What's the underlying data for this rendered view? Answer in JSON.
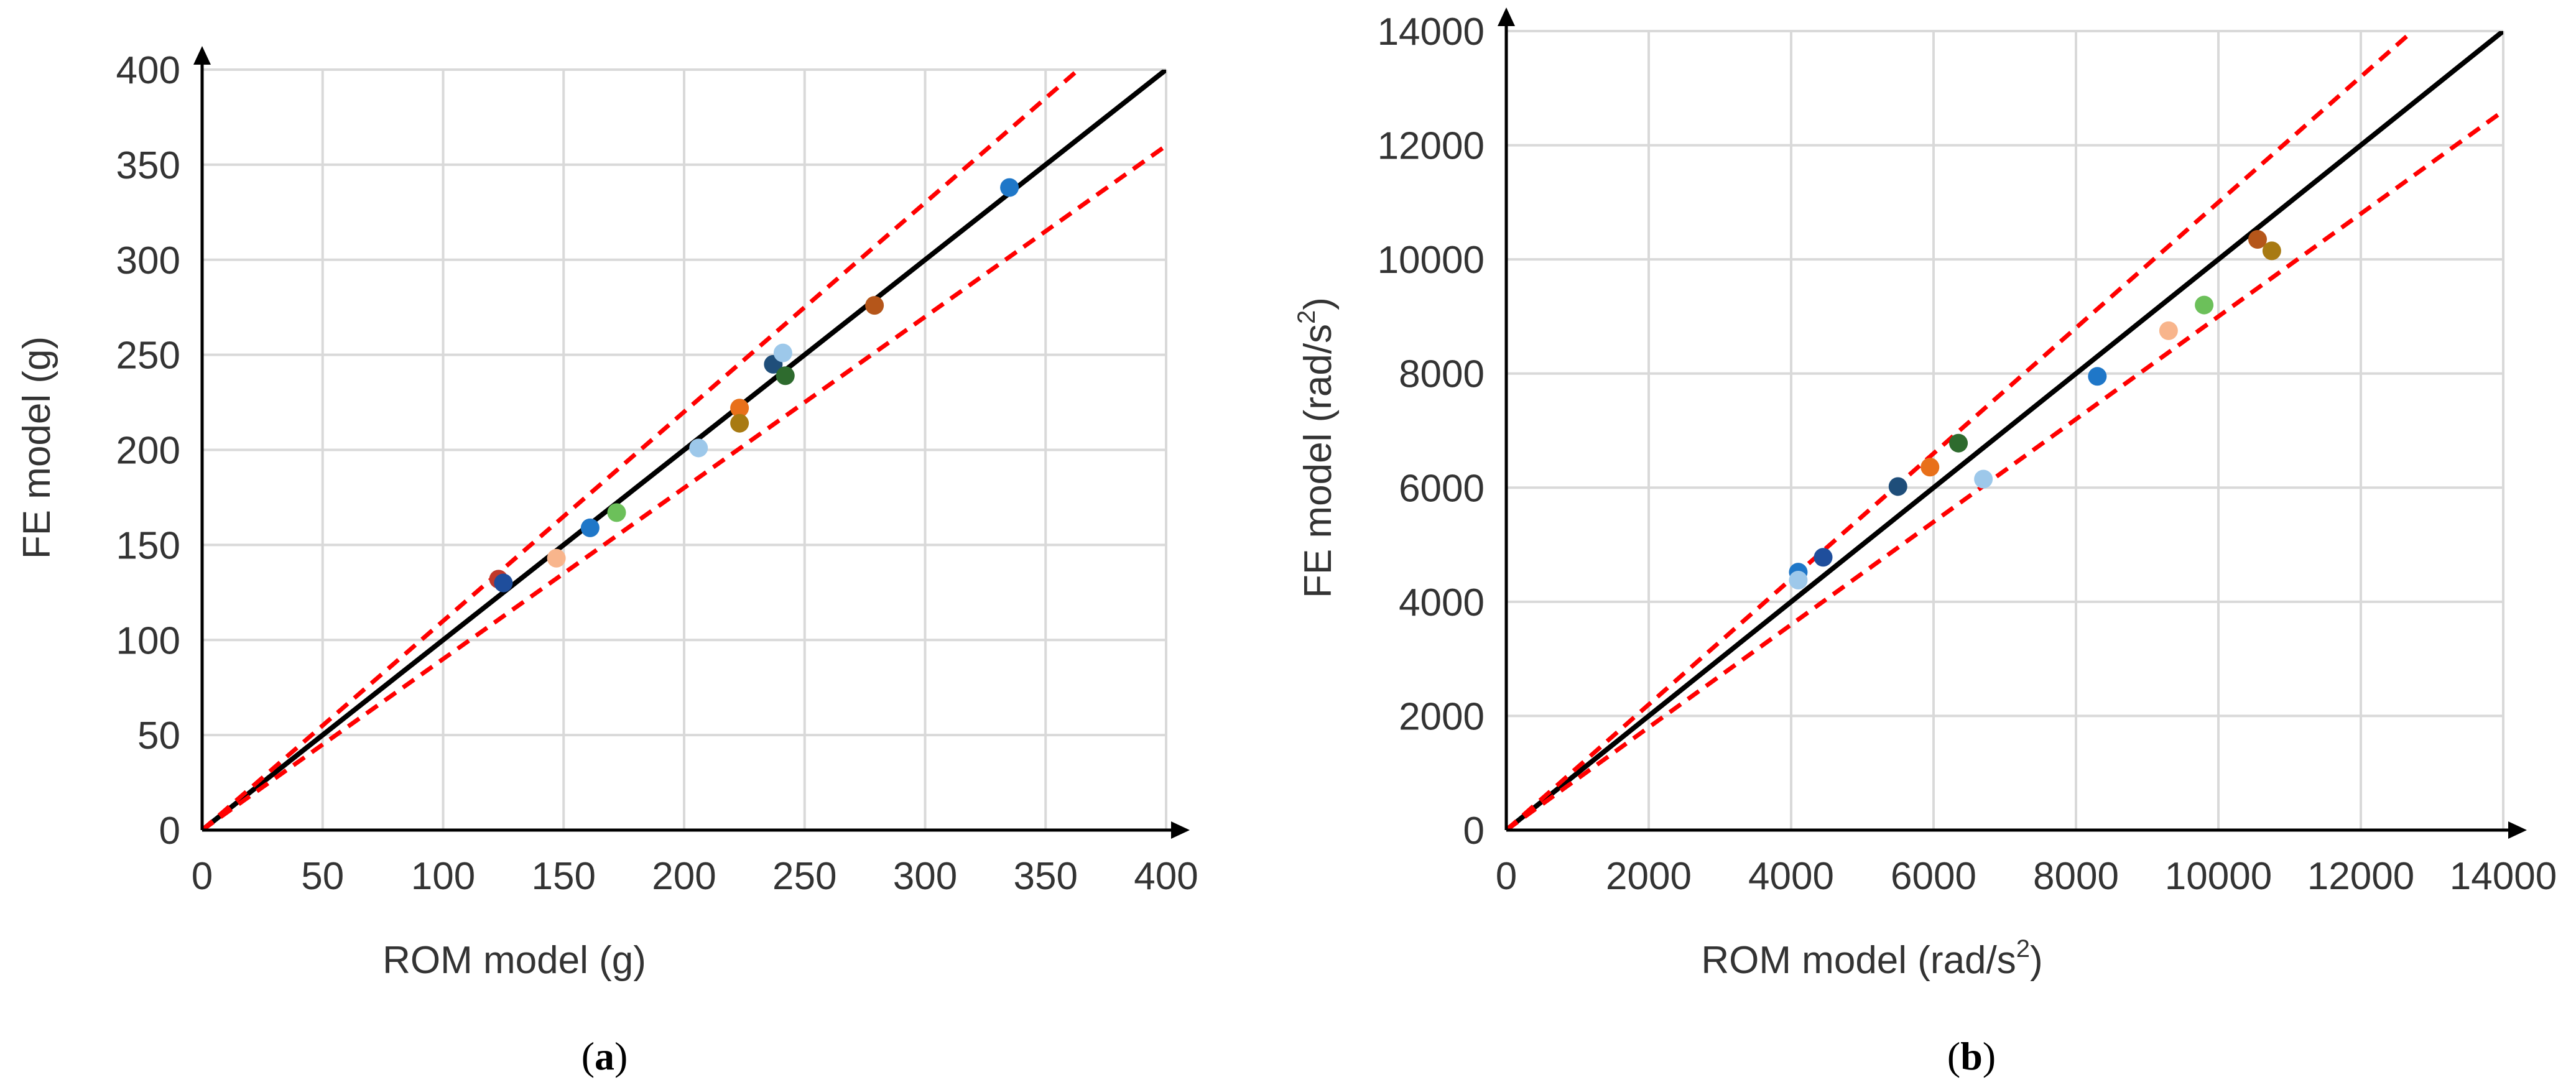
{
  "figure": {
    "panels": [
      "(a)",
      "(b)"
    ]
  },
  "chart_data": [
    {
      "type": "scatter",
      "panel_label": "(a)",
      "title": "",
      "xlabel": "ROM model (g)",
      "ylabel": "FE model (g)",
      "xlim": [
        0,
        400
      ],
      "ylim": [
        0,
        400
      ],
      "xticks": [
        0,
        50,
        100,
        150,
        200,
        250,
        300,
        350,
        400
      ],
      "yticks": [
        0,
        50,
        100,
        150,
        200,
        250,
        300,
        350,
        400
      ],
      "grid": true,
      "reference_lines": [
        {
          "name": "y = x",
          "slope": 1.0,
          "color": "#000000",
          "style": "solid"
        },
        {
          "name": "upper bound",
          "slope": 1.1,
          "color": "#ff0000",
          "style": "dashed"
        },
        {
          "name": "lower bound",
          "slope": 0.9,
          "color": "#ff0000",
          "style": "dashed"
        }
      ],
      "points": [
        {
          "x": 123,
          "y": 132,
          "color": "#c0392b"
        },
        {
          "x": 125,
          "y": 130,
          "color": "#1f4e9c"
        },
        {
          "x": 147,
          "y": 143,
          "color": "#f8b58c"
        },
        {
          "x": 161,
          "y": 159,
          "color": "#1f77c8"
        },
        {
          "x": 172,
          "y": 167,
          "color": "#6cc05a"
        },
        {
          "x": 206,
          "y": 201,
          "color": "#9dc8ea"
        },
        {
          "x": 223,
          "y": 222,
          "color": "#e8701a"
        },
        {
          "x": 223,
          "y": 214,
          "color": "#a87a12"
        },
        {
          "x": 237,
          "y": 245,
          "color": "#1f4e7a"
        },
        {
          "x": 241,
          "y": 251,
          "color": "#9dc8ea"
        },
        {
          "x": 242,
          "y": 239,
          "color": "#2e6b2e"
        },
        {
          "x": 279,
          "y": 276,
          "color": "#b5561a"
        },
        {
          "x": 335,
          "y": 338,
          "color": "#1f77c8"
        }
      ]
    },
    {
      "type": "scatter",
      "panel_label": "(b)",
      "title": "",
      "xlabel": "ROM model (rad/s",
      "xlabel_sup": "2",
      "xlabel_end": ")",
      "ylabel": "FE model (rad/s",
      "ylabel_sup": "2",
      "ylabel_end": ")",
      "xlim": [
        0,
        14000
      ],
      "ylim": [
        0,
        14000
      ],
      "xticks": [
        0,
        2000,
        4000,
        6000,
        8000,
        10000,
        12000,
        14000
      ],
      "yticks": [
        0,
        2000,
        4000,
        6000,
        8000,
        10000,
        12000,
        14000
      ],
      "grid": true,
      "reference_lines": [
        {
          "name": "y = x",
          "slope": 1.0,
          "color": "#000000",
          "style": "solid"
        },
        {
          "name": "upper bound",
          "slope": 1.1,
          "color": "#ff0000",
          "style": "dashed"
        },
        {
          "name": "lower bound",
          "slope": 0.9,
          "color": "#ff0000",
          "style": "dashed"
        }
      ],
      "points": [
        {
          "x": 4100,
          "y": 4520,
          "color": "#1f77c8"
        },
        {
          "x": 4100,
          "y": 4380,
          "color": "#9dc8ea"
        },
        {
          "x": 4450,
          "y": 4780,
          "color": "#1f4e9c"
        },
        {
          "x": 5500,
          "y": 6020,
          "color": "#1f4e7a"
        },
        {
          "x": 5950,
          "y": 6360,
          "color": "#e8701a"
        },
        {
          "x": 6350,
          "y": 6780,
          "color": "#2e6b2e"
        },
        {
          "x": 6700,
          "y": 6150,
          "color": "#9dc8ea"
        },
        {
          "x": 8300,
          "y": 7950,
          "color": "#1f77c8"
        },
        {
          "x": 9300,
          "y": 8750,
          "color": "#f8b58c"
        },
        {
          "x": 9800,
          "y": 9200,
          "color": "#6cc05a"
        },
        {
          "x": 10550,
          "y": 10350,
          "color": "#b5561a"
        },
        {
          "x": 10750,
          "y": 10150,
          "color": "#a87a12"
        }
      ]
    }
  ]
}
